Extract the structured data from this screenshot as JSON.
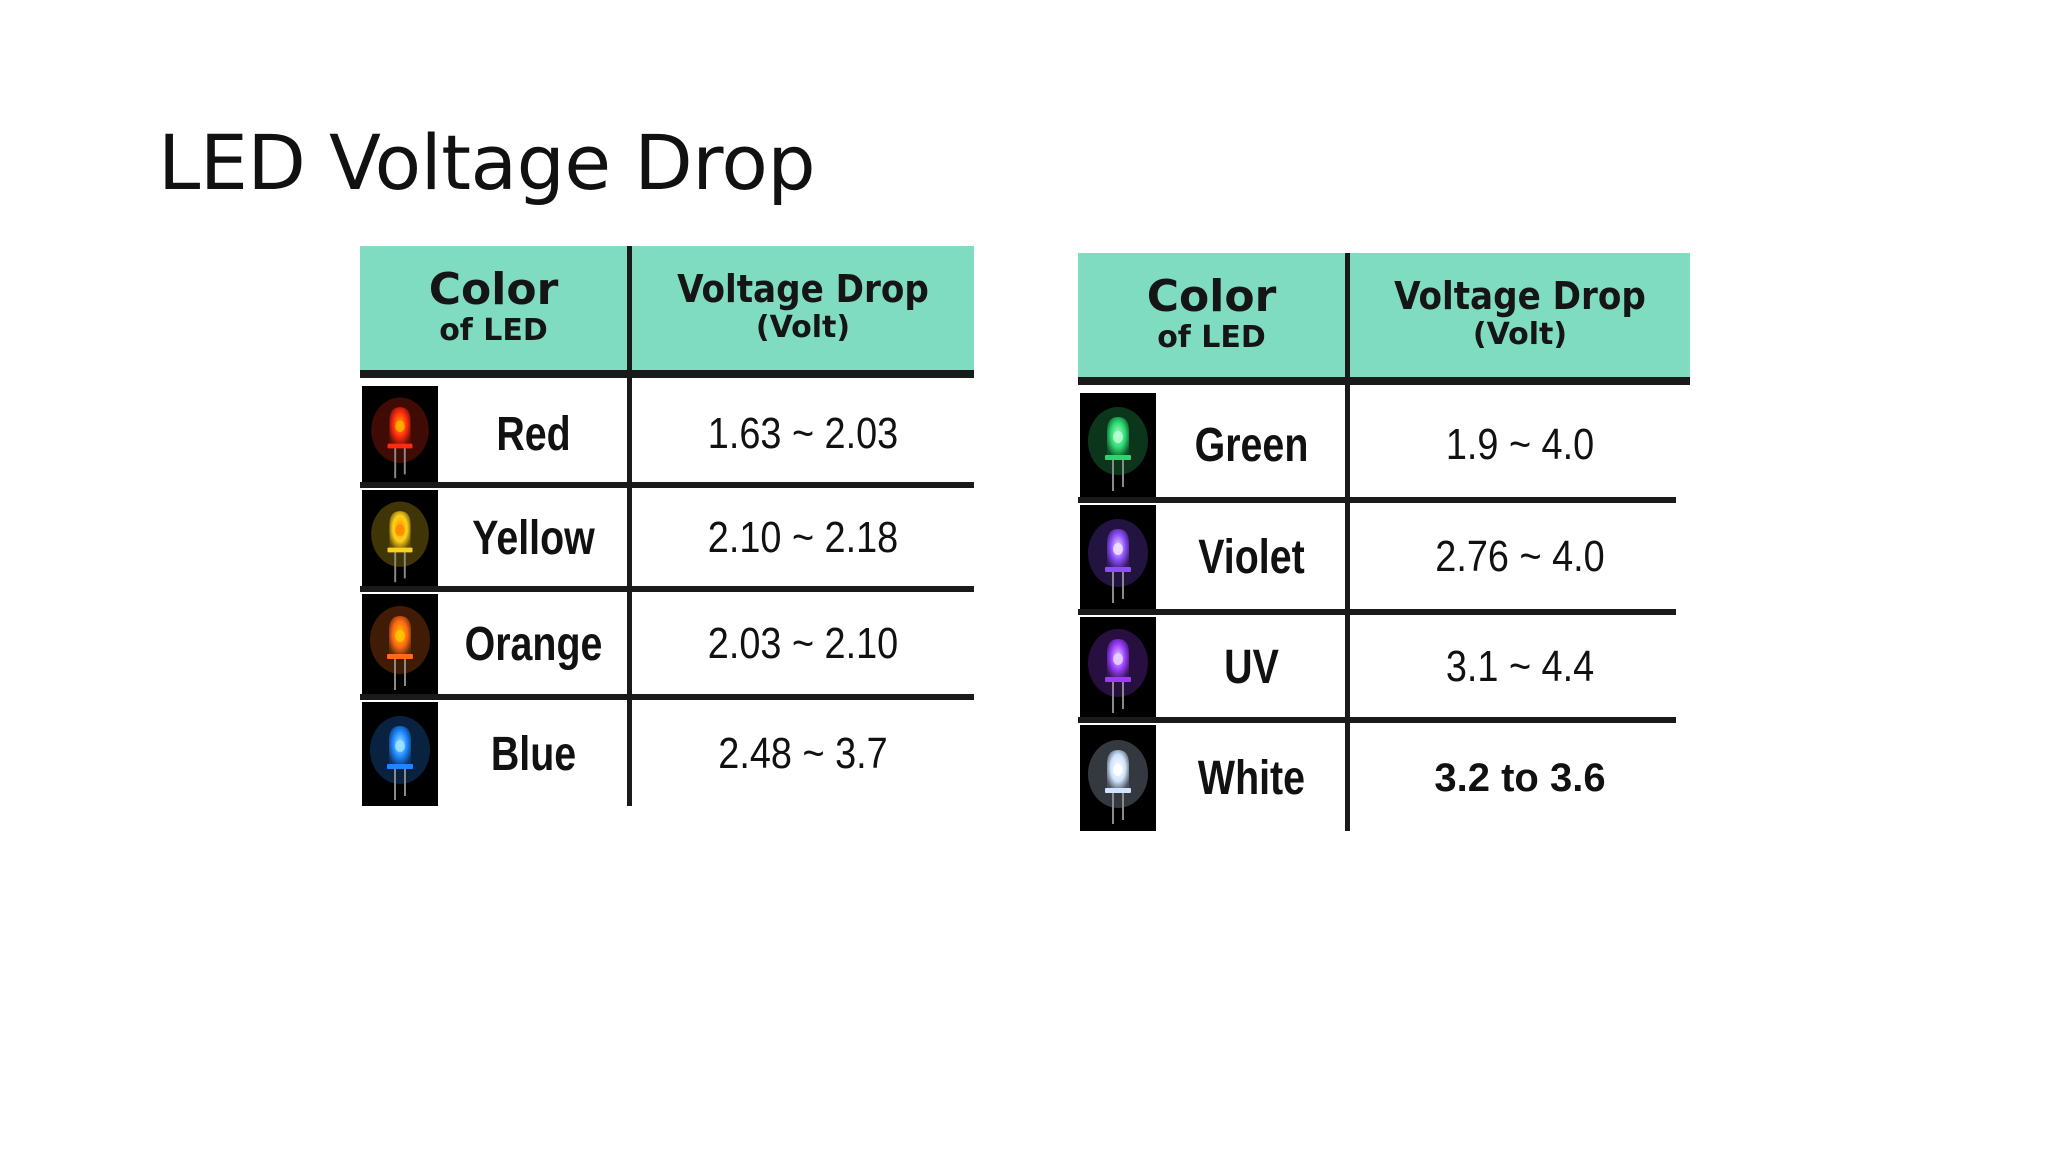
{
  "title": "LED Voltage Drop",
  "tables": [
    {
      "header": {
        "col1_main": "Color",
        "col1_sub": "of LED",
        "col2_main": "Voltage Drop",
        "col2_sub": "(Volt)"
      },
      "rows": [
        {
          "color": "Red",
          "voltage": "1.63 ~ 2.03",
          "led_color": "#ff2a10",
          "glow": "#ffb000"
        },
        {
          "color": "Yellow",
          "voltage": "2.10 ~ 2.18",
          "led_color": "#ffd21a",
          "glow": "#ff8a00"
        },
        {
          "color": "Orange",
          "voltage": "2.03 ~ 2.10",
          "led_color": "#ff6a14",
          "glow": "#ffc400"
        },
        {
          "color": "Blue",
          "voltage": "2.48 ~ 3.7",
          "led_color": "#1e86ff",
          "glow": "#9fe4ff"
        }
      ]
    },
    {
      "header": {
        "col1_main": "Color",
        "col1_sub": "of LED",
        "col2_main": "Voltage Drop",
        "col2_sub": "(Volt)"
      },
      "rows": [
        {
          "color": "Green",
          "voltage": "1.9 ~ 4.0",
          "led_color": "#2ad870",
          "glow": "#b8ffcf"
        },
        {
          "color": "Violet",
          "voltage": "2.76 ~ 4.0",
          "led_color": "#8a4dff",
          "glow": "#f1e2ff"
        },
        {
          "color": "UV",
          "voltage": "3.1 ~ 4.4",
          "led_color": "#9a3cff",
          "glow": "#e7d2ff"
        },
        {
          "color": "White",
          "voltage": "3.2 to 3.6",
          "led_color": "#cfe4ff",
          "glow": "#ffffff"
        }
      ]
    }
  ]
}
